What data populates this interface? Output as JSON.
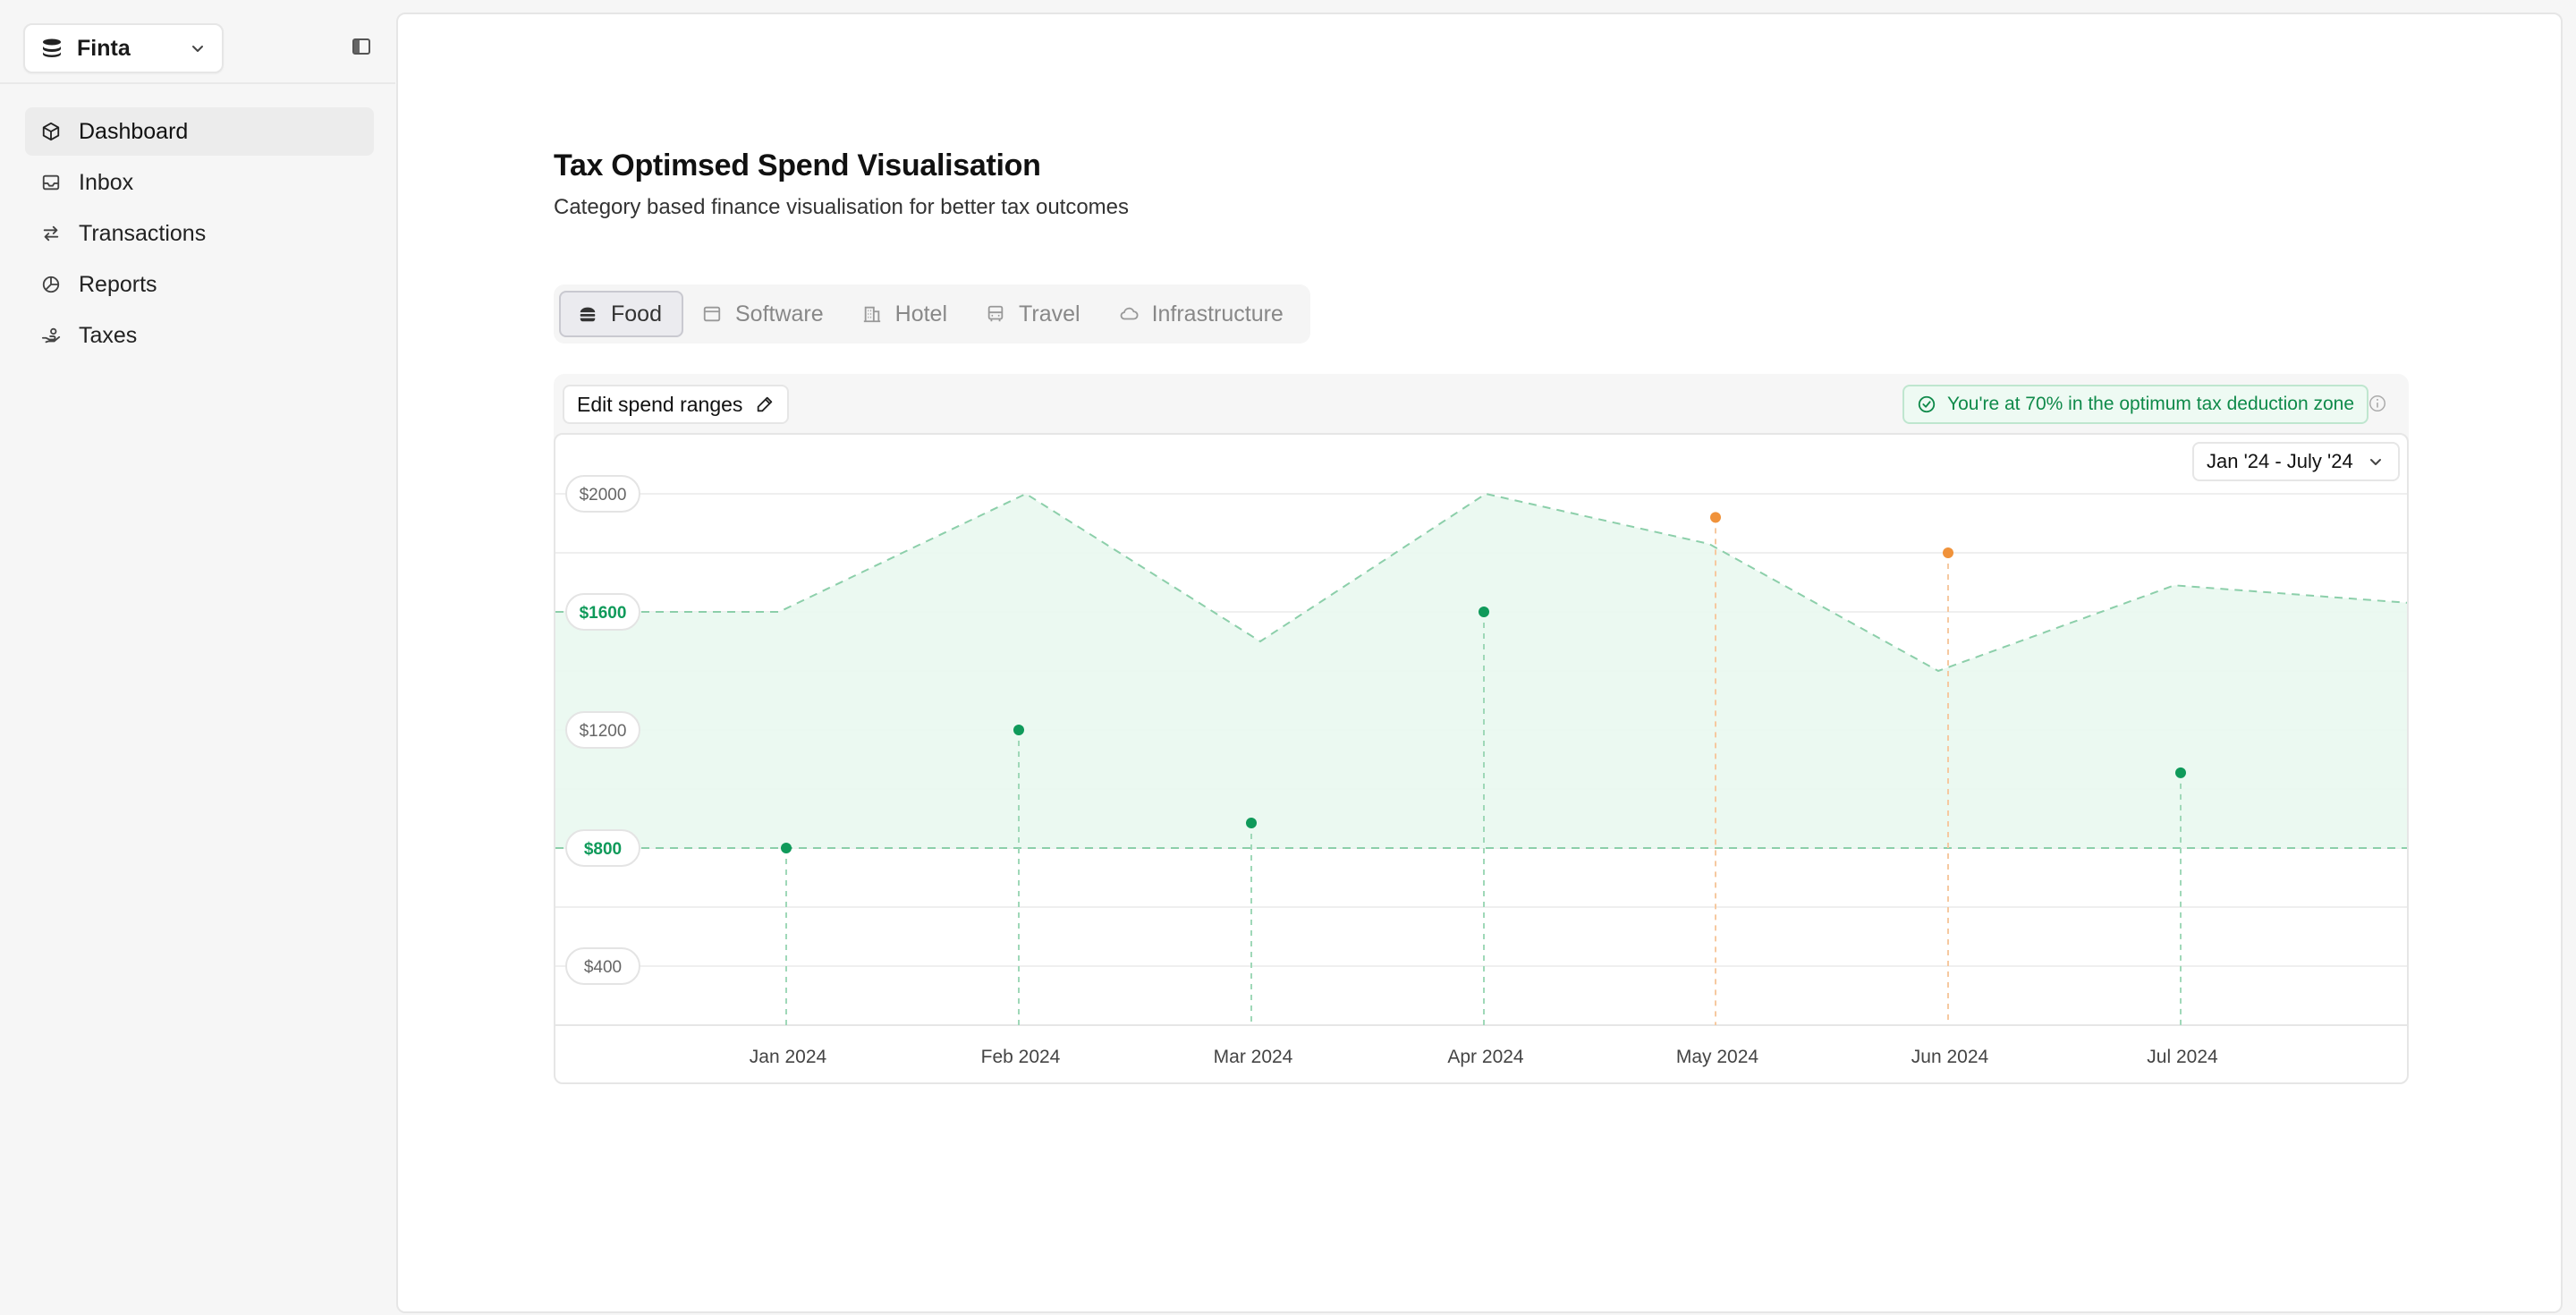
{
  "sidebar": {
    "workspace_name": "Finta",
    "items": [
      {
        "label": "Dashboard",
        "icon": "box-icon",
        "active": true
      },
      {
        "label": "Inbox",
        "icon": "inbox-icon",
        "active": false
      },
      {
        "label": "Transactions",
        "icon": "arrows-icon",
        "active": false
      },
      {
        "label": "Reports",
        "icon": "pie-icon",
        "active": false
      },
      {
        "label": "Taxes",
        "icon": "hand-coins-icon",
        "active": false
      }
    ]
  },
  "main": {
    "title": "Tax Optimsed Spend Visualisation",
    "subtitle": "Category based finance visualisation for better tax outcomes",
    "tabs": [
      {
        "label": "Food",
        "icon": "burger-icon",
        "active": true
      },
      {
        "label": "Software",
        "icon": "window-icon",
        "active": false
      },
      {
        "label": "Hotel",
        "icon": "building-icon",
        "active": false
      },
      {
        "label": "Travel",
        "icon": "bus-icon",
        "active": false
      },
      {
        "label": "Infrastructure",
        "icon": "cloud-icon",
        "active": false
      }
    ],
    "edit_label": "Edit spend ranges",
    "badge_text": "You're at 70% in the optimum tax deduction zone",
    "range_label": "Jan '24 - July '24",
    "colors": {
      "accent": "#0f9a5a",
      "warn": "#f0923a",
      "zone_fill": "#e9f8f0"
    }
  },
  "chart_data": {
    "type": "scatter",
    "x": [
      "Jan 2024",
      "Feb 2024",
      "Mar 2024",
      "Apr 2024",
      "May 2024",
      "Jun 2024",
      "Jul 2024"
    ],
    "yticks": [
      2000,
      1600,
      1200,
      800,
      400
    ],
    "ytick_labels": [
      "$2000",
      "$1600",
      "$1200",
      "$800",
      "$400"
    ],
    "highlighted_ticks": [
      "$1600",
      "$800"
    ],
    "ylim": [
      200,
      2000
    ],
    "spend": [
      800,
      1200,
      885,
      1600,
      1920,
      1800,
      1055
    ],
    "status": [
      "in-zone",
      "in-zone",
      "in-zone",
      "in-zone",
      "over",
      "over",
      "in-zone"
    ],
    "zone_lower": 800,
    "zone_upper": [
      1600,
      1600,
      2000,
      1500,
      2000,
      1830,
      1400,
      1690,
      1630
    ]
  }
}
